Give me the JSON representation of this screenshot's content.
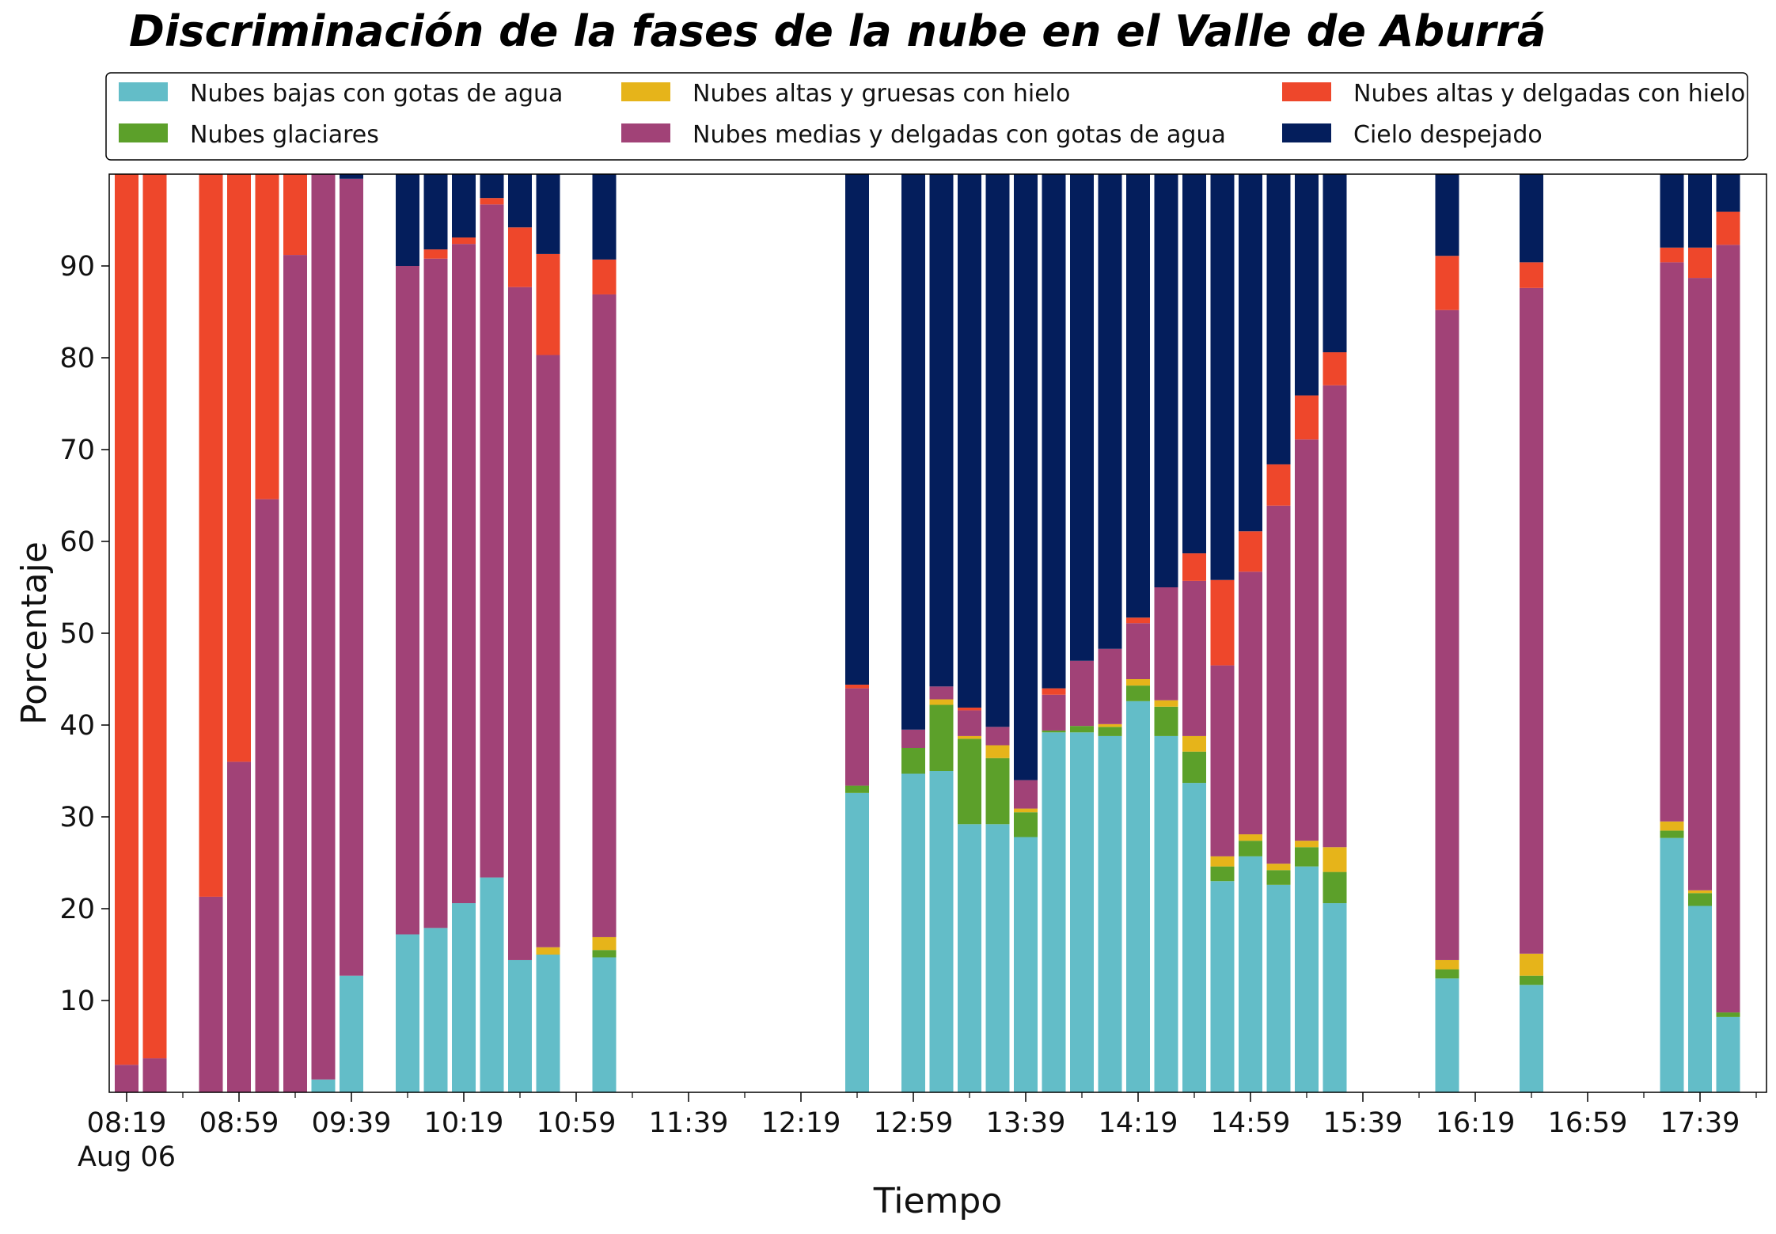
{
  "chart_data": {
    "type": "bar",
    "stacked": true,
    "title": "Discriminación de la fases de la nube en el Valle de Aburrá",
    "xlabel": "Tiempo",
    "ylabel": "Porcentaje",
    "ylim": [
      0,
      100
    ],
    "yticks": [
      10,
      20,
      30,
      40,
      50,
      60,
      70,
      80,
      90
    ],
    "date_label": "Aug 06",
    "grid": false,
    "legend_position": "top",
    "start_time": "08:19",
    "interval_minutes": 10,
    "xticks": [
      "08:19",
      "08:59",
      "09:39",
      "10:19",
      "10:59",
      "11:39",
      "12:19",
      "12:59",
      "13:39",
      "14:19",
      "14:59",
      "15:39",
      "16:19",
      "16:59",
      "17:39"
    ],
    "series": [
      {
        "name": "Nubes bajas con gotas de agua",
        "color": "#63bdc8"
      },
      {
        "name": "Nubes glaciares",
        "color": "#5ca02a"
      },
      {
        "name": "Nubes altas y gruesas con hielo",
        "color": "#e6b41a"
      },
      {
        "name": "Nubes medias y delgadas con gotas de agua",
        "color": "#a14277"
      },
      {
        "name": "Nubes altas y delgadas con hielo",
        "color": "#ee472b"
      },
      {
        "name": "Cielo despejado",
        "color": "#041e5c"
      }
    ],
    "bars": [
      {
        "time": "08:19",
        "values": [
          0,
          0,
          0,
          3,
          97,
          0
        ]
      },
      {
        "time": "08:29",
        "values": [
          0,
          0,
          0,
          3.7,
          96.3,
          0
        ]
      },
      {
        "time": "08:49",
        "values": [
          0,
          0,
          0,
          21.3,
          78.7,
          0
        ]
      },
      {
        "time": "08:59",
        "values": [
          0,
          0,
          0,
          36,
          64,
          0
        ]
      },
      {
        "time": "09:09",
        "values": [
          0,
          0,
          0,
          64.6,
          35.4,
          0
        ]
      },
      {
        "time": "09:19",
        "values": [
          0,
          0,
          0,
          91.2,
          8.8,
          0
        ]
      },
      {
        "time": "09:29",
        "values": [
          1.4,
          0,
          0,
          98.6,
          0,
          0
        ]
      },
      {
        "time": "09:39",
        "values": [
          12.7,
          0,
          0,
          86.8,
          0,
          0.5
        ]
      },
      {
        "time": "09:59",
        "values": [
          17.2,
          0,
          0,
          72.8,
          0,
          10
        ]
      },
      {
        "time": "10:09",
        "values": [
          17.9,
          0,
          0,
          72.9,
          1,
          8.2
        ]
      },
      {
        "time": "10:19",
        "values": [
          20.6,
          0,
          0,
          71.8,
          0.7,
          6.9
        ]
      },
      {
        "time": "10:29",
        "values": [
          23.4,
          0,
          0,
          73.3,
          0.7,
          2.6
        ]
      },
      {
        "time": "10:39",
        "values": [
          14.4,
          0,
          0,
          73.3,
          6.5,
          5.8
        ]
      },
      {
        "time": "10:49",
        "values": [
          15,
          0,
          0.8,
          64.5,
          11,
          8.7
        ]
      },
      {
        "time": "11:09",
        "values": [
          14.7,
          0.8,
          1.4,
          70,
          3.8,
          9.3
        ]
      },
      {
        "time": "12:39",
        "values": [
          32.6,
          0.8,
          0,
          10.6,
          0.4,
          55.6
        ]
      },
      {
        "time": "12:59",
        "values": [
          34.7,
          2.8,
          0,
          2,
          0,
          60.5
        ]
      },
      {
        "time": "13:09",
        "values": [
          35,
          7.2,
          0.6,
          1.4,
          0,
          55.8
        ]
      },
      {
        "time": "13:19",
        "values": [
          29.2,
          9.3,
          0.3,
          2.8,
          0.3,
          58.1
        ]
      },
      {
        "time": "13:29",
        "values": [
          29.2,
          7.2,
          1.4,
          2,
          0,
          60.2
        ]
      },
      {
        "time": "13:39",
        "values": [
          27.8,
          2.7,
          0.4,
          3.1,
          0,
          66
        ]
      },
      {
        "time": "13:49",
        "values": [
          39.2,
          0.2,
          0,
          3.9,
          0.7,
          56
        ]
      },
      {
        "time": "13:59",
        "values": [
          39.2,
          0.7,
          0,
          7.1,
          0,
          53
        ]
      },
      {
        "time": "14:09",
        "values": [
          38.8,
          1,
          0.3,
          8.2,
          0,
          51.7
        ]
      },
      {
        "time": "14:19",
        "values": [
          42.6,
          1.7,
          0.7,
          6.1,
          0.6,
          48.3
        ]
      },
      {
        "time": "14:29",
        "values": [
          38.8,
          3.2,
          0.7,
          12.3,
          0,
          45
        ]
      },
      {
        "time": "14:39",
        "values": [
          33.7,
          3.4,
          1.7,
          16.9,
          3,
          41.3
        ]
      },
      {
        "time": "14:49",
        "values": [
          23,
          1.6,
          1.1,
          20.8,
          9.3,
          44.2
        ]
      },
      {
        "time": "14:59",
        "values": [
          25.7,
          1.7,
          0.7,
          28.6,
          4.4,
          38.9
        ]
      },
      {
        "time": "15:09",
        "values": [
          22.6,
          1.6,
          0.7,
          39,
          4.5,
          31.6
        ]
      },
      {
        "time": "15:19",
        "values": [
          24.6,
          2.1,
          0.7,
          43.7,
          4.8,
          24.1
        ]
      },
      {
        "time": "15:29",
        "values": [
          20.6,
          3.4,
          2.7,
          50.3,
          3.6,
          19.4
        ]
      },
      {
        "time": "16:09",
        "values": [
          12.4,
          1,
          1,
          70.8,
          5.9,
          8.9
        ]
      },
      {
        "time": "16:39",
        "values": [
          11.7,
          1,
          2.4,
          72.5,
          2.8,
          9.6
        ]
      },
      {
        "time": "17:29",
        "values": [
          27.7,
          0.8,
          1,
          60.9,
          1.6,
          8
        ]
      },
      {
        "time": "17:39",
        "values": [
          20.3,
          1.4,
          0.3,
          66.7,
          3.3,
          8
        ]
      },
      {
        "time": "17:49",
        "values": [
          8.2,
          0.5,
          0,
          83.6,
          3.6,
          4.1
        ]
      }
    ]
  }
}
